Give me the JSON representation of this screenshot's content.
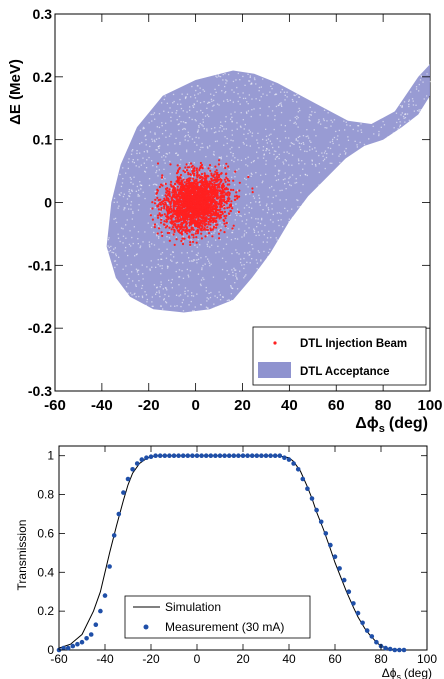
{
  "chart_data": [
    {
      "type": "scatter",
      "title": "",
      "xlabel": "Δϕs (deg)",
      "xlabel_main": "Δϕ",
      "xlabel_sub": "s",
      "xlabel_unit": "(deg)",
      "ylabel": "ΔE (MeV)",
      "xlim": [
        -60,
        100
      ],
      "ylim": [
        -0.3,
        0.3
      ],
      "x_ticks": [
        "-60",
        "-40",
        "-20",
        "0",
        "20",
        "40",
        "60",
        "80",
        "100"
      ],
      "y_ticks": [
        "-0.3",
        "-0.2",
        "-0.1",
        "0",
        "0.1",
        "0.2",
        "0.3"
      ],
      "legend_position": "bottom-right",
      "series": [
        {
          "name": "DTL Injection Beam",
          "color": "#ff2020",
          "marker": "dot",
          "center": [
            0,
            0
          ],
          "spread_x_deg": 8,
          "spread_y_mev": 0.03,
          "extent_x": [
            -20,
            25
          ],
          "extent_y": [
            -0.07,
            0.07
          ]
        },
        {
          "name": "DTL Acceptance",
          "color": "#8f93cf",
          "marker": "box",
          "boundary": [
            [
              -38,
              -0.07
            ],
            [
              -36,
              0.0
            ],
            [
              -32,
              0.06
            ],
            [
              -25,
              0.12
            ],
            [
              -14,
              0.17
            ],
            [
              0,
              0.195
            ],
            [
              16,
              0.21
            ],
            [
              25,
              0.205
            ],
            [
              35,
              0.19
            ],
            [
              45,
              0.17
            ],
            [
              55,
              0.15
            ],
            [
              65,
              0.13
            ],
            [
              75,
              0.125
            ],
            [
              85,
              0.145
            ],
            [
              95,
              0.2
            ],
            [
              100,
              0.22
            ],
            [
              100,
              0.17
            ],
            [
              95,
              0.14
            ],
            [
              88,
              0.12
            ],
            [
              80,
              0.1
            ],
            [
              72,
              0.09
            ],
            [
              64,
              0.07
            ],
            [
              56,
              0.04
            ],
            [
              48,
              0.01
            ],
            [
              40,
              -0.03
            ],
            [
              32,
              -0.08
            ],
            [
              24,
              -0.12
            ],
            [
              16,
              -0.155
            ],
            [
              6,
              -0.17
            ],
            [
              -5,
              -0.175
            ],
            [
              -18,
              -0.17
            ],
            [
              -28,
              -0.15
            ],
            [
              -34,
              -0.12
            ],
            [
              -38,
              -0.07
            ]
          ]
        }
      ]
    },
    {
      "type": "line",
      "title": "",
      "xlabel": "Δϕs (deg)",
      "xlabel_main": "Δϕ",
      "xlabel_sub": "s",
      "xlabel_unit": "(deg)",
      "ylabel": "Transmission",
      "xlim": [
        -60,
        100
      ],
      "ylim": [
        0,
        1.05
      ],
      "x_ticks": [
        "-60",
        "-40",
        "-20",
        "0",
        "20",
        "40",
        "60",
        "80",
        "100"
      ],
      "y_ticks": [
        "0",
        "0.2",
        "0.4",
        "0.6",
        "0.8",
        "1"
      ],
      "legend_position": "bottom-left",
      "series": [
        {
          "name": "Simulation",
          "color": "#000000",
          "style": "line",
          "x": [
            -60,
            -55,
            -50,
            -45,
            -42,
            -40,
            -38,
            -35,
            -32,
            -30,
            -28,
            -25,
            -22,
            -20,
            -18,
            -15,
            -10,
            0,
            10,
            20,
            30,
            35,
            40,
            42,
            45,
            48,
            50,
            52,
            55,
            58,
            60,
            63,
            65,
            68,
            70,
            73,
            75,
            78,
            80,
            83,
            85,
            88,
            90
          ],
          "y": [
            0.01,
            0.03,
            0.08,
            0.2,
            0.3,
            0.4,
            0.5,
            0.64,
            0.77,
            0.85,
            0.91,
            0.96,
            0.985,
            0.995,
            1.0,
            1.0,
            1.0,
            1.0,
            1.0,
            1.0,
            1.0,
            1.0,
            0.99,
            0.97,
            0.92,
            0.84,
            0.78,
            0.71,
            0.62,
            0.52,
            0.45,
            0.36,
            0.3,
            0.22,
            0.17,
            0.11,
            0.08,
            0.04,
            0.02,
            0.008,
            0.004,
            0.001,
            0.0
          ]
        },
        {
          "name": "Measurement (30 mA)",
          "color": "#1f4fa8",
          "style": "points",
          "x": [
            -60,
            -58,
            -56,
            -54,
            -52,
            -50,
            -48,
            -46,
            -44,
            -42,
            -40,
            -38,
            -36,
            -34,
            -32,
            -30,
            -28,
            -26,
            -24,
            -22,
            -20,
            -18,
            -16,
            -14,
            -12,
            -10,
            -8,
            -6,
            -4,
            -2,
            0,
            2,
            4,
            6,
            8,
            10,
            12,
            14,
            16,
            18,
            20,
            22,
            24,
            26,
            28,
            30,
            32,
            34,
            36,
            38,
            40,
            42,
            44,
            46,
            48,
            50,
            52,
            54,
            56,
            58,
            60,
            62,
            64,
            66,
            68,
            70,
            72,
            74,
            76,
            78,
            80,
            82,
            84,
            86,
            88,
            90
          ],
          "y": [
            0.0,
            0.01,
            0.01,
            0.02,
            0.03,
            0.04,
            0.06,
            0.08,
            0.13,
            0.2,
            0.28,
            0.43,
            0.59,
            0.7,
            0.81,
            0.88,
            0.93,
            0.96,
            0.98,
            0.99,
            0.995,
            1.0,
            1.0,
            1.0,
            1.0,
            1.0,
            1.0,
            1.0,
            1.0,
            1.0,
            1.0,
            1.0,
            1.0,
            1.0,
            1.0,
            1.0,
            1.0,
            1.0,
            1.0,
            1.0,
            1.0,
            1.0,
            1.0,
            1.0,
            1.0,
            1.0,
            1.0,
            1.0,
            1.0,
            0.99,
            0.98,
            0.96,
            0.93,
            0.88,
            0.83,
            0.78,
            0.72,
            0.66,
            0.6,
            0.54,
            0.48,
            0.42,
            0.36,
            0.3,
            0.24,
            0.19,
            0.14,
            0.1,
            0.07,
            0.04,
            0.02,
            0.01,
            0.005,
            0.0,
            0.0,
            0.0
          ]
        }
      ]
    }
  ]
}
